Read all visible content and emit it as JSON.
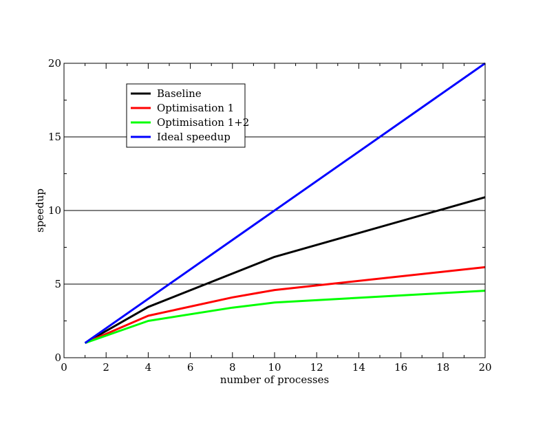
{
  "chart_data": {
    "type": "line",
    "title": "",
    "xlabel": "number of processes",
    "ylabel": "speedup",
    "xlim": [
      0,
      20
    ],
    "ylim": [
      0,
      20
    ],
    "xticks": [
      0,
      2,
      4,
      6,
      8,
      10,
      12,
      14,
      16,
      18,
      20
    ],
    "yticks": [
      0,
      5,
      10,
      15,
      20
    ],
    "grid": "horizontal major lines",
    "legend_position": "top-left",
    "series": [
      {
        "name": "Baseline",
        "color": "#000000",
        "x": [
          1,
          4,
          10,
          20
        ],
        "y": [
          1.0,
          3.45,
          6.85,
          10.9
        ]
      },
      {
        "name": "Optimisation 1",
        "color": "#ff0000",
        "x": [
          1,
          4,
          8,
          10,
          20
        ],
        "y": [
          1.0,
          2.85,
          4.1,
          4.6,
          6.15
        ]
      },
      {
        "name": "Optimisation 1+2",
        "color": "#00ff00",
        "x": [
          1,
          4,
          8,
          10,
          20
        ],
        "y": [
          1.0,
          2.5,
          3.4,
          3.75,
          4.55
        ]
      },
      {
        "name": "Ideal speedup",
        "color": "#0000ff",
        "x": [
          1,
          20
        ],
        "y": [
          1.0,
          20.0
        ]
      }
    ]
  }
}
